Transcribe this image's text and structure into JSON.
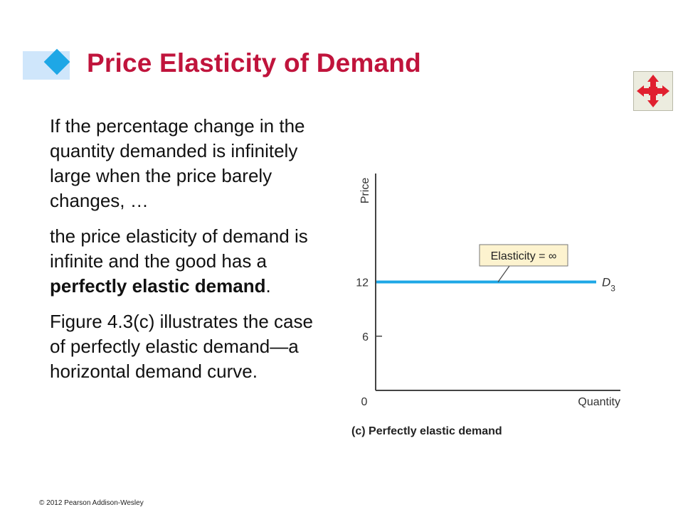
{
  "slide": {
    "title": "Price Elasticity of Demand",
    "nav_icon": "four-way-arrows-icon",
    "paragraphs": {
      "p1": "If the percentage change in the quantity demanded is infinitely large when the price barely changes, …",
      "p2_lead": "the price elasticity of demand is infinite and the good has a ",
      "p2_bold": "perfectly elastic demand",
      "p2_end": ".",
      "p3": "Figure 4.3(c) illustrates the case of perfectly elastic demand—a horizontal demand curve."
    },
    "copyright": "© 2012 Pearson Addison-Wesley"
  },
  "colors": {
    "title": "#c0143c",
    "accent": "#1ea7e6",
    "callout_fill": "#fdf3cf"
  },
  "chart_data": {
    "type": "line",
    "ylabel": "Price",
    "xlabel": "Quantity",
    "origin_label": "0",
    "y_ticks": [
      6,
      12
    ],
    "ylim": [
      0,
      24
    ],
    "series": [
      {
        "name": "D",
        "subscript": "3",
        "x": [
          0,
          1
        ],
        "y": [
          12,
          12
        ]
      }
    ],
    "annotation": "Elasticity = ∞",
    "caption": {
      "tag": "(c)",
      "text": "Perfectly elastic demand"
    }
  }
}
